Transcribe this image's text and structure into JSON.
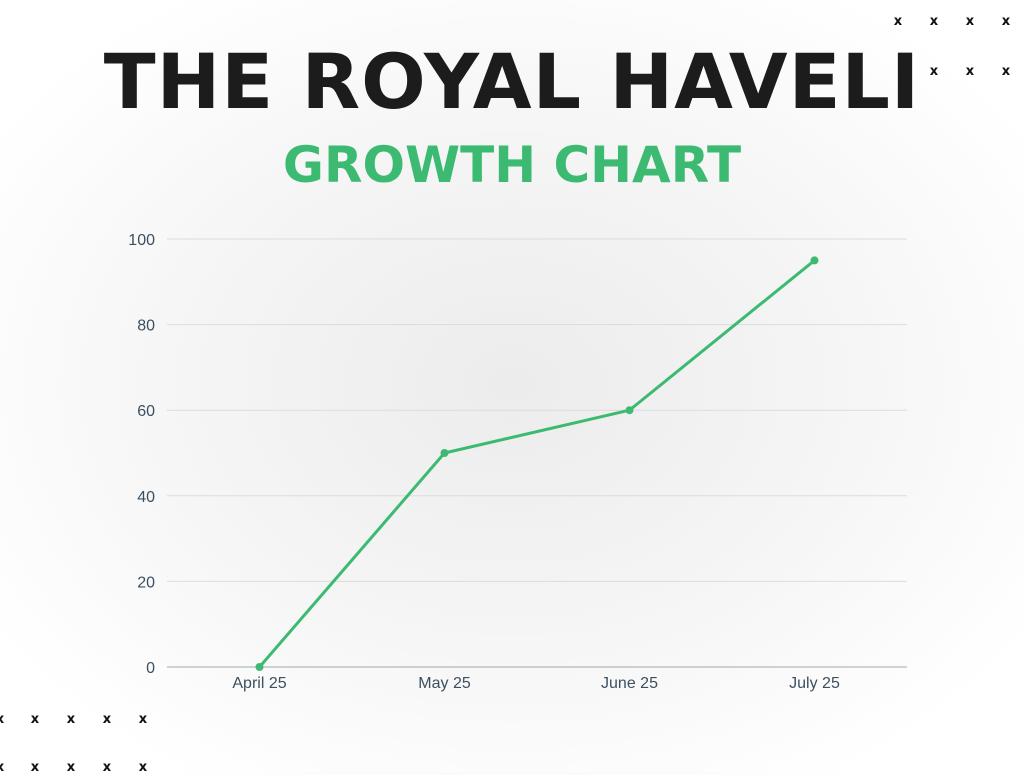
{
  "header": {
    "title": "THE ROYAL HAVELI",
    "subtitle": "GROWTH CHART"
  },
  "decorations": {
    "mark_glyph": "x"
  },
  "colors": {
    "line": "#3dba72",
    "title": "#1c1c1c",
    "subtitle": "#3dba72",
    "gridline": "#dcdcdc",
    "axis_line": "#9aa8b4",
    "tick_text": "#3c4f61"
  },
  "chart_data": {
    "type": "line",
    "title": "GROWTH CHART",
    "xlabel": "",
    "ylabel": "",
    "categories": [
      "April 25",
      "May 25",
      "June 25",
      "July 25"
    ],
    "series": [
      {
        "values": [
          0,
          50,
          60,
          95
        ]
      }
    ],
    "ylim": [
      0,
      100
    ],
    "yticks": [
      0,
      20,
      40,
      60,
      80,
      100
    ],
    "grid": true,
    "legend": "none"
  }
}
